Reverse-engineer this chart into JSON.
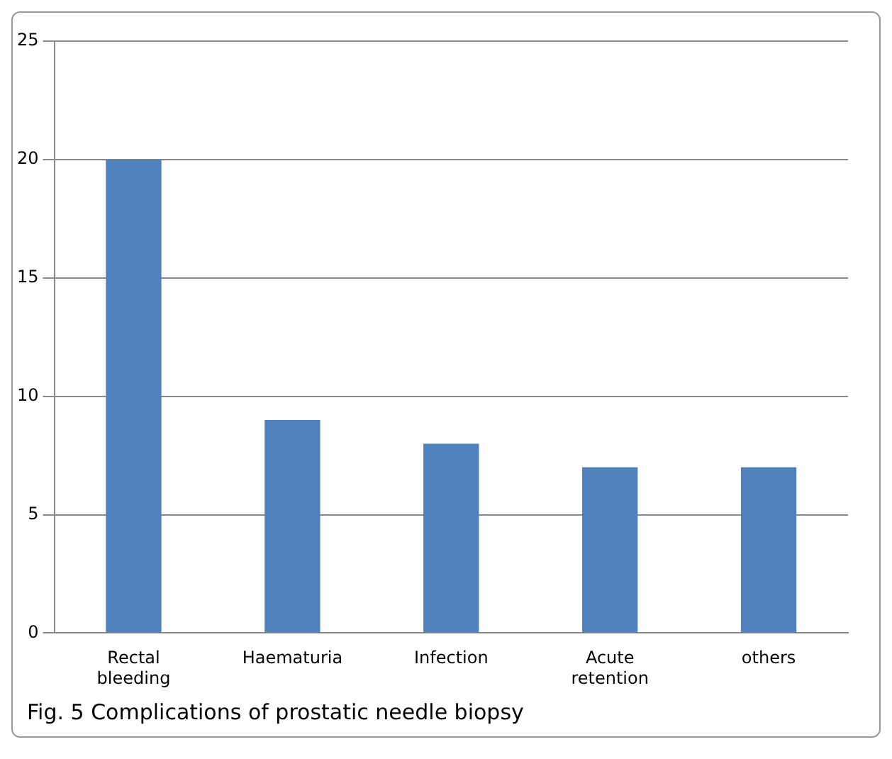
{
  "chart_data": {
    "type": "bar",
    "title": "Fig. 5  Complications of prostatic needle biopsy",
    "categories": [
      "Rectal bleeding",
      "Haematuria",
      "Infection",
      "Acute retention",
      "others"
    ],
    "values": [
      20,
      9,
      8,
      7,
      7
    ],
    "color": "#4f81bd",
    "ylim": [
      0,
      25
    ],
    "yticks": [
      0,
      5,
      10,
      15,
      20,
      25
    ],
    "grid": "y",
    "legend": false
  }
}
